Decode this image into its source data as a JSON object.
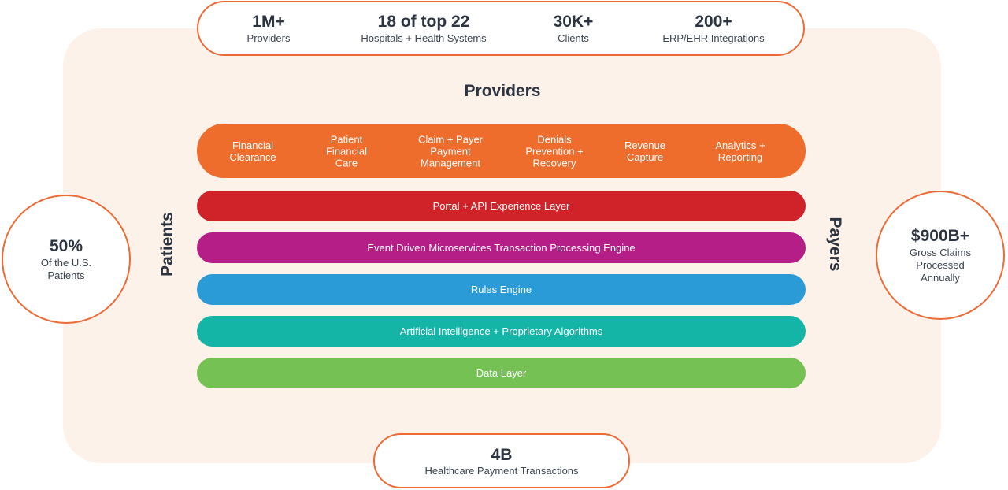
{
  "top_stats": [
    {
      "value": "1M+",
      "label": "Providers"
    },
    {
      "value": "18 of top 22",
      "label": "Hospitals + Health Systems"
    },
    {
      "value": "30K+",
      "label": "Clients"
    },
    {
      "value": "200+",
      "label": "ERP/EHR Integrations"
    }
  ],
  "providers_title": "Providers",
  "functions": [
    {
      "line1": "Financial",
      "line2": "Clearance",
      "line3": ""
    },
    {
      "line1": "Patient",
      "line2": "Financial",
      "line3": "Care"
    },
    {
      "line1": "Claim + Payer",
      "line2": "Payment",
      "line3": "Management"
    },
    {
      "line1": "Denials",
      "line2": "Prevention +",
      "line3": "Recovery"
    },
    {
      "line1": "Revenue",
      "line2": "Capture",
      "line3": ""
    },
    {
      "line1": "Analytics +",
      "line2": "Reporting",
      "line3": ""
    }
  ],
  "layers": [
    {
      "label": "Portal + API Experience Layer",
      "color": "#cf2229"
    },
    {
      "label": "Event Driven Microservices Transaction Processing Engine",
      "color": "#b51e86"
    },
    {
      "label": "Rules Engine",
      "color": "#2a9bd6"
    },
    {
      "label": "Artificial Intelligence + Proprietary Algorithms",
      "color": "#14b5a6"
    },
    {
      "label": "Data Layer",
      "color": "#76c153"
    }
  ],
  "patients": {
    "side_label": "Patients",
    "value": "50%",
    "label": "Of the U.S. Patients"
  },
  "payers": {
    "side_label": "Payers",
    "value": "$900B+",
    "label": "Gross Claims Processed Annually"
  },
  "bottom_stat": {
    "value": "4B",
    "label": "Healthcare Payment Transactions"
  },
  "colors": {
    "accent": "#ee6a35",
    "panel": "#fdf2ea",
    "orange_bar": "#ef6d2c"
  }
}
